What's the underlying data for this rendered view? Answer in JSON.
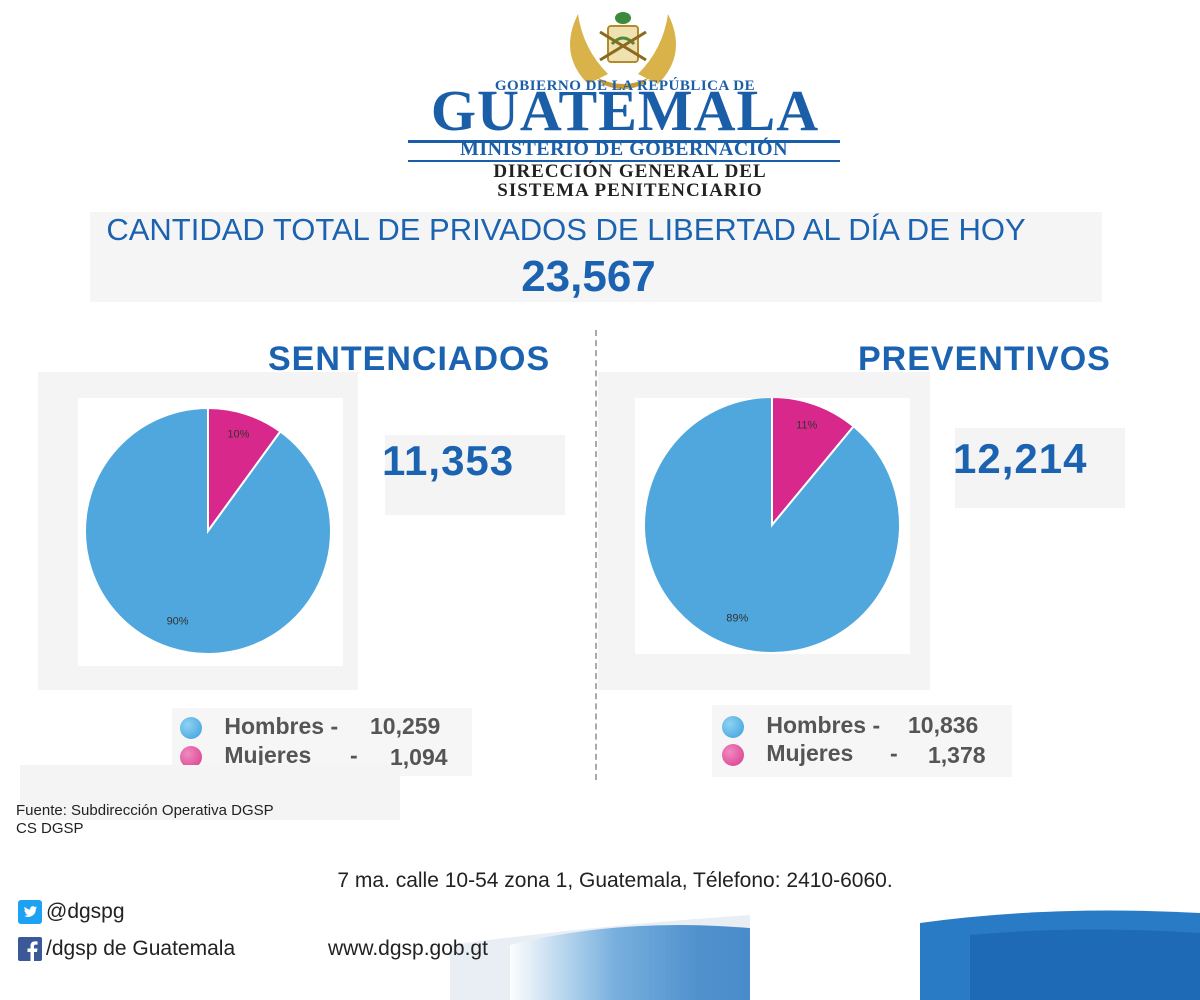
{
  "header": {
    "gov_line": "GOBIERNO DE LA REPÚBLICA DE",
    "country": "GUATEMALA",
    "ministry": "MINISTERIO DE GOBERNACIÓN",
    "direction_line1": "DIRECCIÓN GENERAL DEL",
    "direction_line2": "SISTEMA PENITENCIARIO"
  },
  "total": {
    "title": "CANTIDAD TOTAL DE PRIVADOS DE LIBERTAD AL DÍA DE HOY",
    "value": "23,567"
  },
  "sentenciados": {
    "title": "SENTENCIADOS",
    "total": "11,353",
    "legend": [
      {
        "label": "Hombres -",
        "value": "10,259"
      },
      {
        "label": "Mujeres",
        "dash": "-",
        "value": "1,094"
      }
    ]
  },
  "preventivos": {
    "title": "PREVENTIVOS",
    "total": "12,214",
    "legend": [
      {
        "label": "Hombres -",
        "value": "10,836"
      },
      {
        "label": "Mujeres",
        "dash": "-",
        "value": "1,378"
      }
    ]
  },
  "colors": {
    "hombres": "#4fa7dd",
    "mujeres": "#d8288b",
    "accent": "#1b63b0"
  },
  "chart_data": [
    {
      "type": "pie",
      "title": "SENTENCIADOS",
      "categories": [
        "Mujeres",
        "Hombres"
      ],
      "values": [
        10,
        90
      ],
      "labels": [
        "10%",
        "90%"
      ]
    },
    {
      "type": "pie",
      "title": "PREVENTIVOS",
      "categories": [
        "Mujeres",
        "Hombres"
      ],
      "values": [
        11,
        89
      ],
      "labels": [
        "11%",
        "89%"
      ]
    }
  ],
  "footer": {
    "source_line1": "Fuente: Subdirección Operativa DGSP",
    "source_line2": "CS DGSP",
    "address": "7 ma. calle 10-54 zona 1, Guatemala, Télefono: 2410-6060.",
    "twitter": "@dgspg",
    "twitter_icon": "twitter-icon",
    "facebook": "/dgsp de Guatemala",
    "facebook_icon": "facebook-icon",
    "website": "www.dgsp.gob.gt"
  }
}
